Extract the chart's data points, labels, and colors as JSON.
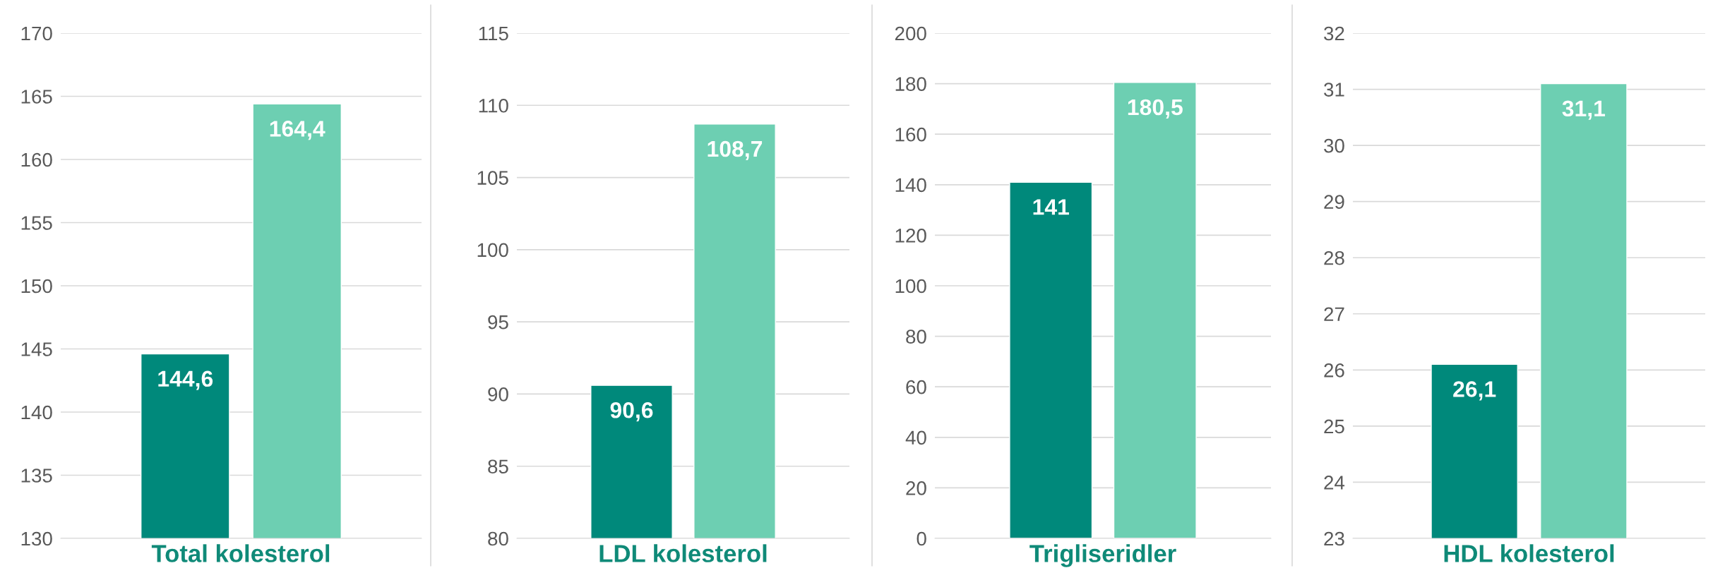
{
  "chart_data": [
    {
      "type": "bar",
      "categories": [
        "Total kolesterol"
      ],
      "series": [
        {
          "color": "#00897b",
          "values": [
            144.6
          ],
          "value_labels": [
            "144,6"
          ]
        },
        {
          "color": "#6dcfb2",
          "values": [
            164.4
          ],
          "value_labels": [
            "164,4"
          ]
        }
      ],
      "ylim": [
        130,
        170
      ],
      "yticks": [
        130,
        135,
        140,
        145,
        150,
        155,
        160,
        165,
        170
      ],
      "grid": "y"
    },
    {
      "type": "bar",
      "categories": [
        "LDL kolesterol"
      ],
      "series": [
        {
          "color": "#00897b",
          "values": [
            90.6
          ],
          "value_labels": [
            "90,6"
          ]
        },
        {
          "color": "#6dcfb2",
          "values": [
            108.7
          ],
          "value_labels": [
            "108,7"
          ]
        }
      ],
      "ylim": [
        80,
        115
      ],
      "yticks": [
        80,
        85,
        90,
        95,
        100,
        105,
        110,
        115
      ],
      "grid": "y"
    },
    {
      "type": "bar",
      "categories": [
        "Trigliseridler"
      ],
      "series": [
        {
          "color": "#00897b",
          "values": [
            141
          ],
          "value_labels": [
            "141"
          ]
        },
        {
          "color": "#6dcfb2",
          "values": [
            180.5
          ],
          "value_labels": [
            "180,5"
          ]
        }
      ],
      "ylim": [
        0,
        200
      ],
      "yticks": [
        0,
        20,
        40,
        60,
        80,
        100,
        120,
        140,
        160,
        180,
        200
      ],
      "grid": "y"
    },
    {
      "type": "bar",
      "categories": [
        "HDL kolesterol"
      ],
      "series": [
        {
          "color": "#00897b",
          "values": [
            26.1
          ],
          "value_labels": [
            "26,1"
          ]
        },
        {
          "color": "#6dcfb2",
          "values": [
            31.1
          ],
          "value_labels": [
            "31,1"
          ]
        }
      ],
      "ylim": [
        23,
        32
      ],
      "yticks": [
        23,
        24,
        25,
        26,
        27,
        28,
        29,
        30,
        31,
        32
      ],
      "grid": "y"
    }
  ]
}
